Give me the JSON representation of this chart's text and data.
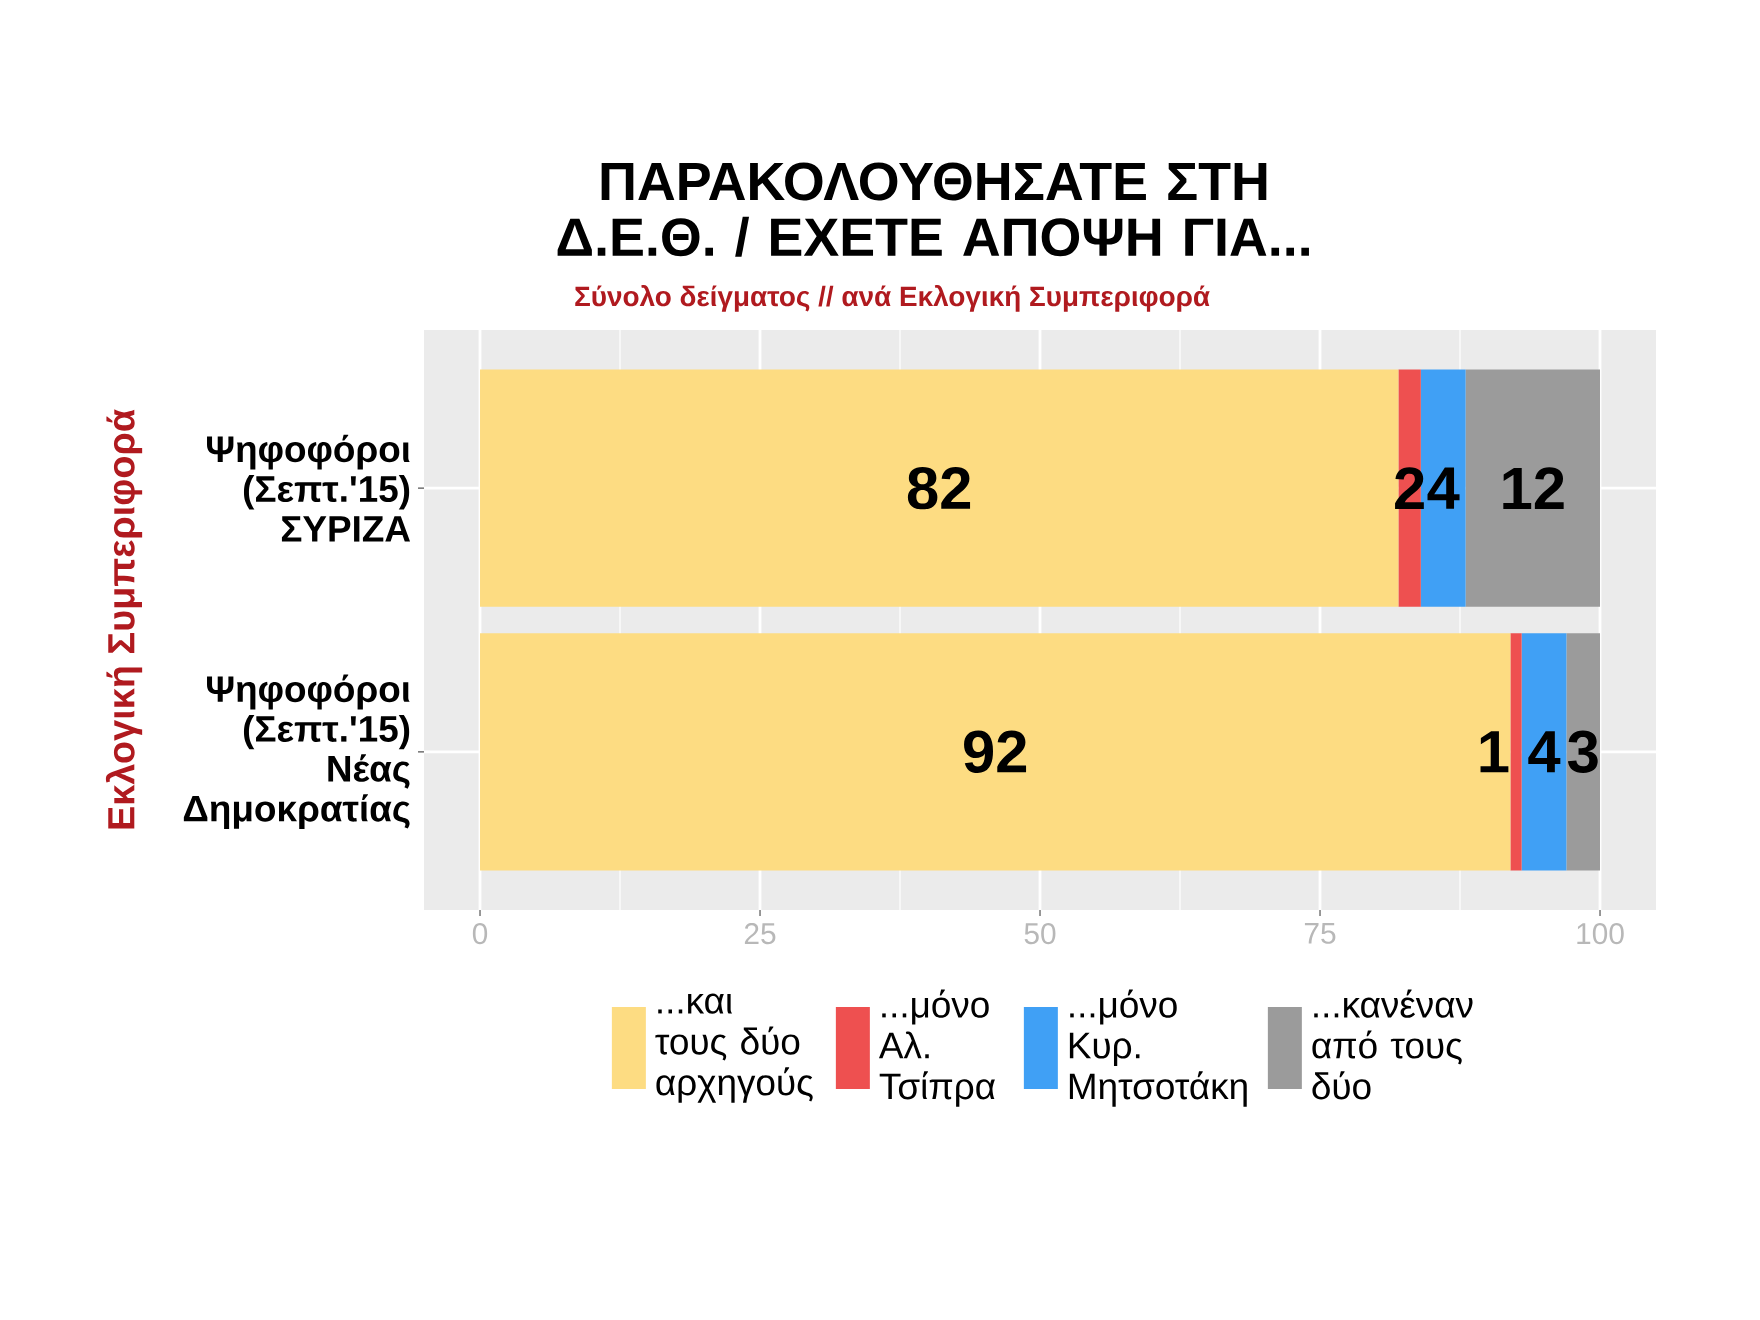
{
  "chart_data": {
    "type": "bar",
    "orientation": "horizontal",
    "stacked": true,
    "title": "ΠΑΡΑΚΟΛΟΥΘΗΣΑΤΕ ΣΤΗ Δ.Ε.Θ. / ΕΧΕΤΕ ΑΠΟΨΗ ΓΙΑ...",
    "subtitle": "Σύνολο δείγματος // ανά Εκλογική Συμπεριφορά",
    "ylabel": "Εκλογική Συμπεριφορά",
    "categories": [
      "Ψηφοφόροι (Σεπτ.'15) ΣΥΡΙΖΑ",
      "Ψηφοφόροι (Σεπτ.'15) Νέας Δημοκρατίας"
    ],
    "series": [
      {
        "name": "...και τους δύο αρχηγούς",
        "color": "#fddc82",
        "values": [
          82,
          92
        ]
      },
      {
        "name": "...μόνο Αλ. Τσίπρα",
        "color": "#ee5050",
        "values": [
          2,
          1
        ]
      },
      {
        "name": "...μόνο Κυρ. Μητσοτάκη",
        "color": "#40a0f5",
        "values": [
          4,
          4
        ]
      },
      {
        "name": "...κανέναν από τους δύο",
        "color": "#9b9b9b",
        "values": [
          12,
          3
        ]
      }
    ],
    "xlim": [
      -5,
      105
    ],
    "xticks": [
      0,
      25,
      50,
      75,
      100
    ],
    "data_labels": true,
    "grid": true,
    "legend": "bottom"
  }
}
